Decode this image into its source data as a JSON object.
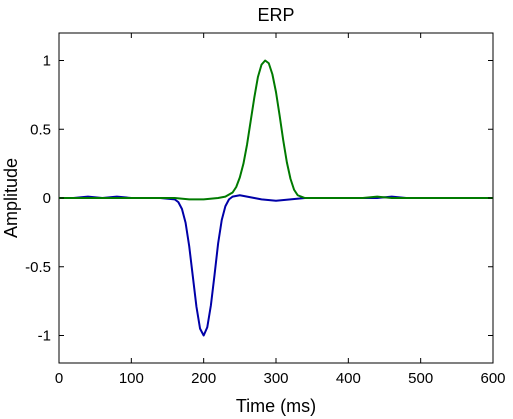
{
  "chart_data": {
    "type": "line",
    "title": "ERP",
    "xlabel": "Time (ms)",
    "ylabel": "Amplitude",
    "xlim": [
      0,
      600
    ],
    "ylim": [
      -1.2,
      1.2
    ],
    "xticks": [
      0,
      100,
      200,
      300,
      400,
      500,
      600
    ],
    "yticks": [
      -1,
      -0.5,
      0,
      0.5,
      1
    ],
    "xtick_labels": [
      "0",
      "100",
      "200",
      "300",
      "400",
      "500",
      "600"
    ],
    "ytick_labels": [
      "-1",
      "-0.5",
      "0",
      "0.5",
      "1"
    ],
    "grid": false,
    "legend": "none",
    "series": [
      {
        "color": "#0000a8",
        "x": [
          0,
          20,
          40,
          60,
          80,
          100,
          120,
          140,
          160,
          165,
          170,
          175,
          180,
          185,
          190,
          195,
          200,
          205,
          210,
          215,
          220,
          225,
          230,
          235,
          240,
          250,
          260,
          270,
          280,
          300,
          320,
          340,
          360,
          380,
          400,
          420,
          440,
          460,
          480,
          500,
          520,
          540,
          560,
          580,
          600
        ],
        "y": [
          0.0,
          0.0,
          0.01,
          0.0,
          0.01,
          0.0,
          0.0,
          0.0,
          -0.01,
          -0.03,
          -0.08,
          -0.18,
          -0.35,
          -0.57,
          -0.79,
          -0.95,
          -1.0,
          -0.94,
          -0.78,
          -0.56,
          -0.33,
          -0.16,
          -0.06,
          -0.01,
          0.01,
          0.02,
          0.01,
          0.0,
          -0.01,
          -0.02,
          -0.01,
          0.0,
          0.0,
          0.0,
          0.0,
          0.0,
          0.0,
          0.01,
          0.0,
          0.0,
          0.0,
          0.0,
          0.0,
          0.0,
          0.0
        ]
      },
      {
        "color": "#007a00",
        "x": [
          0,
          20,
          40,
          60,
          80,
          100,
          120,
          140,
          160,
          180,
          200,
          220,
          230,
          240,
          245,
          250,
          255,
          260,
          265,
          270,
          275,
          280,
          285,
          290,
          295,
          300,
          305,
          310,
          315,
          320,
          325,
          330,
          335,
          340,
          360,
          380,
          400,
          420,
          440,
          460,
          480,
          500,
          520,
          540,
          560,
          580,
          600
        ],
        "y": [
          0.0,
          0.0,
          0.0,
          0.0,
          0.0,
          0.0,
          0.0,
          0.0,
          0.0,
          -0.01,
          -0.01,
          0.0,
          0.01,
          0.04,
          0.08,
          0.15,
          0.25,
          0.39,
          0.56,
          0.73,
          0.88,
          0.97,
          1.0,
          0.98,
          0.9,
          0.77,
          0.6,
          0.42,
          0.26,
          0.14,
          0.06,
          0.02,
          0.01,
          0.0,
          0.0,
          0.0,
          0.0,
          0.0,
          0.01,
          0.0,
          0.0,
          0.0,
          0.0,
          0.0,
          0.0,
          0.0,
          0.0
        ]
      }
    ]
  }
}
